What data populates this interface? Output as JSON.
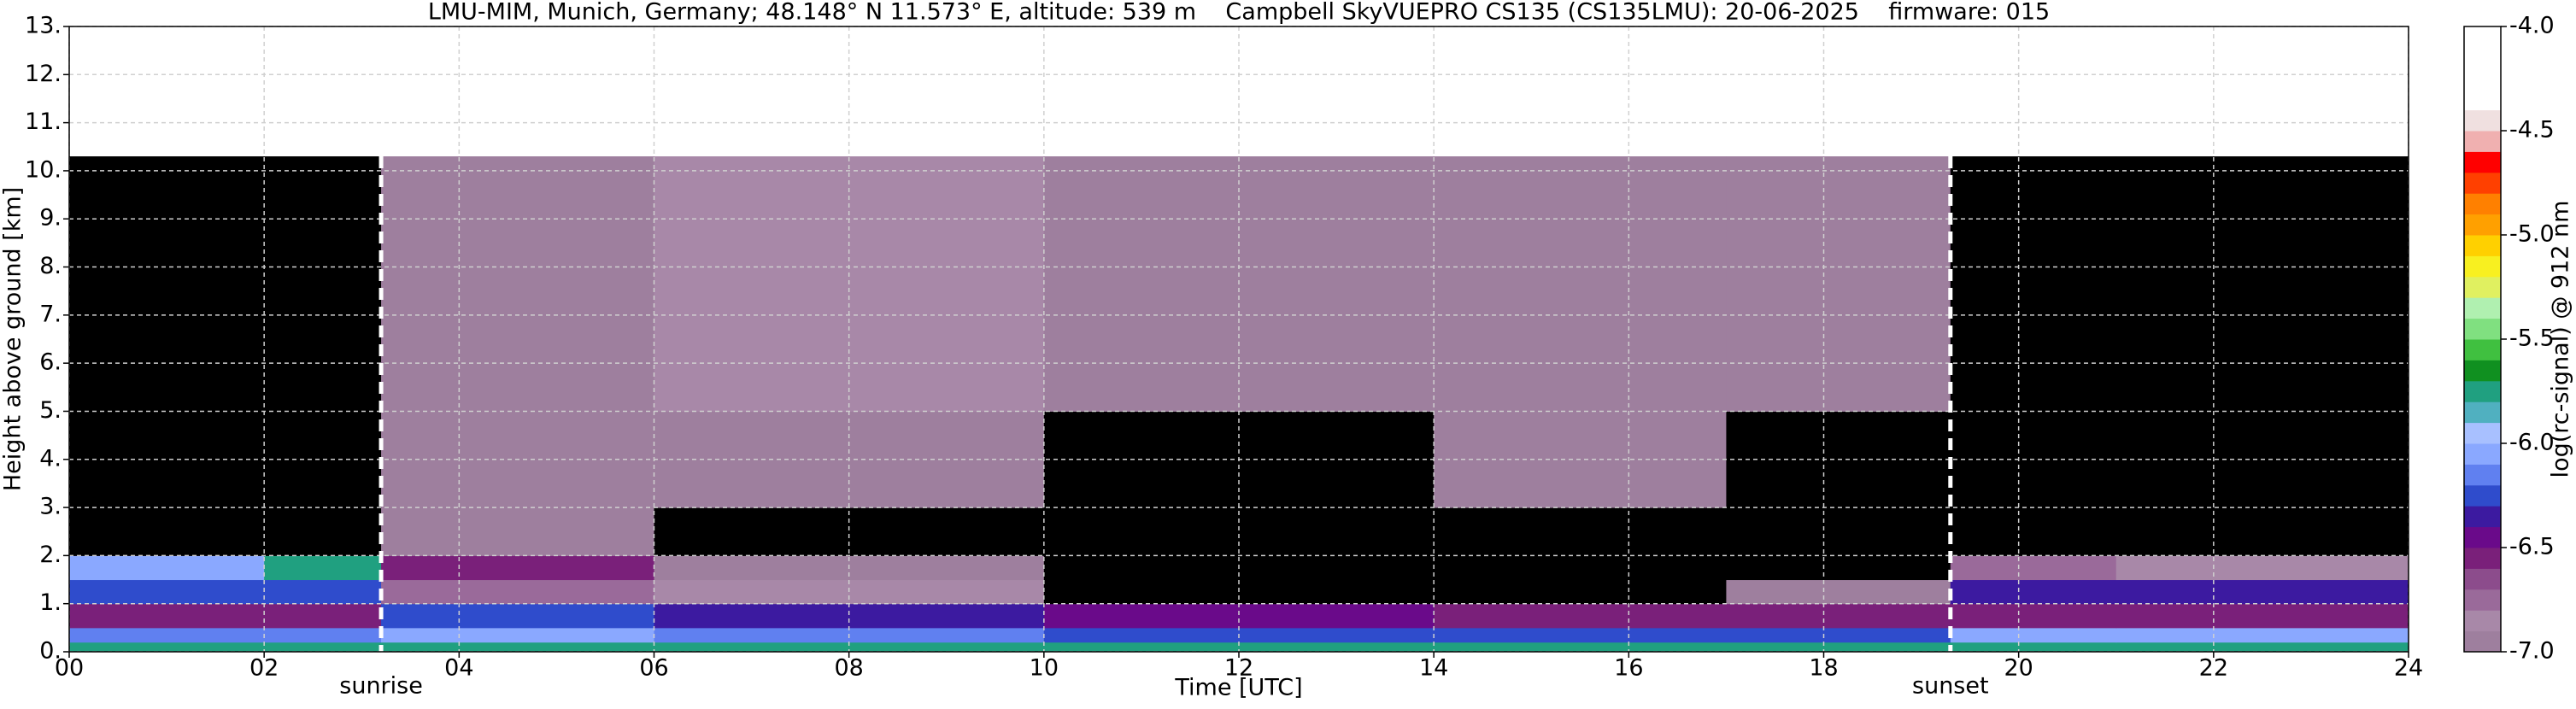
{
  "chart_data": {
    "type": "heatmap",
    "title": "LMU-MIM, Munich, Germany; 48.148° N 11.573° E, altitude: 539 m    Campbell SkyVUEPRO CS135 (CS135LMU): 20-06-2025    firmware: 015",
    "xlabel": "Time [UTC]",
    "ylabel": "Height above ground [km]",
    "colorbar_label": "log(rc-signal) @ 912 nm",
    "xlim": [
      0,
      24
    ],
    "ylim": [
      0,
      13
    ],
    "xticks": [
      {
        "value": 0,
        "label": "00"
      },
      {
        "value": 2,
        "label": "02"
      },
      {
        "value": 4,
        "label": "04"
      },
      {
        "value": 6,
        "label": "06"
      },
      {
        "value": 8,
        "label": "08"
      },
      10,
      12,
      14,
      16,
      18,
      20,
      22,
      24
    ],
    "yticks": [
      {
        "value": 0,
        "label": "0."
      },
      {
        "value": 1,
        "label": "1."
      },
      {
        "value": 2,
        "label": "2."
      },
      {
        "value": 3,
        "label": "3."
      },
      {
        "value": 4,
        "label": "4."
      },
      {
        "value": 5,
        "label": "5."
      },
      {
        "value": 6,
        "label": "6."
      },
      {
        "value": 7,
        "label": "7."
      },
      {
        "value": 8,
        "label": "8."
      },
      {
        "value": 9,
        "label": "9."
      },
      {
        "value": 10,
        "label": "10."
      },
      {
        "value": 11,
        "label": "11."
      },
      {
        "value": 12,
        "label": "12."
      },
      {
        "value": 13,
        "label": "13."
      }
    ],
    "grid": true,
    "x_edges": [
      0,
      2,
      3.2,
      6,
      10,
      14,
      17,
      19.3,
      21,
      24
    ],
    "y_edges": [
      0,
      0.2,
      0.5,
      1.0,
      1.5,
      2.0,
      3.0,
      5.0,
      10.3
    ],
    "z": [
      [
        -5.8,
        -5.8,
        -5.8,
        -5.8,
        -5.8,
        -5.8,
        -5.8,
        -5.8,
        -5.8
      ],
      [
        -6.2,
        -6.2,
        -6.1,
        -6.2,
        -6.3,
        -6.3,
        -6.3,
        -6.1,
        -6.1
      ],
      [
        -6.6,
        -6.6,
        -6.3,
        -6.4,
        -6.5,
        -6.6,
        -6.6,
        -6.6,
        -6.6
      ],
      [
        -6.3,
        -6.3,
        -6.8,
        -6.9,
        -7.2,
        -7.2,
        -7.0,
        -6.4,
        -6.4
      ],
      [
        -6.1,
        -5.8,
        -6.6,
        -7.0,
        -7.2,
        -7.2,
        -7.2,
        -6.8,
        -6.9
      ],
      [
        -7.2,
        -7.2,
        -6.95,
        -7.2,
        -7.2,
        -7.2,
        -7.2,
        -7.2,
        -7.1
      ],
      [
        -7.2,
        -7.2,
        -6.95,
        -6.95,
        -7.2,
        -6.95,
        -7.2,
        -7.2,
        -7.2
      ],
      [
        -7.2,
        -7.2,
        -6.95,
        -6.9,
        -6.95,
        -6.95,
        -6.95,
        -7.2,
        -7.2
      ]
    ],
    "under_color": "#000000",
    "colorbar_edges": [
      -7.0,
      -6.9,
      -6.8,
      -6.7,
      -6.6,
      -6.5,
      -6.4,
      -6.3,
      -6.2,
      -6.1,
      -6.0,
      -5.9,
      -5.8,
      -5.7,
      -5.6,
      -5.5,
      -5.4,
      -5.3,
      -5.2,
      -5.1,
      -5.0,
      -4.9,
      -4.8,
      -4.7,
      -4.6,
      -4.5,
      -4.4,
      -4.3,
      -4.2,
      -4.1,
      -4.0
    ],
    "colorbar_colors": [
      "#9e7f9e",
      "#a888a8",
      "#9a6a9a",
      "#8c4c8c",
      "#7a207a",
      "#6a0a8a",
      "#3c1aa0",
      "#2f4ccc",
      "#6080f0",
      "#8aa8ff",
      "#a8c0ff",
      "#50b0c0",
      "#20a080",
      "#109020",
      "#40c040",
      "#80e080",
      "#b0f0b0",
      "#e0f060",
      "#f8f020",
      "#ffd000",
      "#ffa000",
      "#ff8000",
      "#ff4000",
      "#ff0000",
      "#f0b0b0",
      "#f0e0e0",
      "#ffffff",
      "#ffffff",
      "#ffffff",
      "#ffffff"
    ],
    "colorbar_ticks": [
      {
        "value": -7.0,
        "label": "-7.0"
      },
      {
        "value": -6.5,
        "label": "-6.5"
      },
      {
        "value": -6.0,
        "label": "-6.0"
      },
      {
        "value": -5.5,
        "label": "-5.5"
      },
      {
        "value": -5.0,
        "label": "-5.0"
      },
      {
        "value": -4.5,
        "label": "-4.5"
      },
      {
        "value": -4.0,
        "label": "-4.0"
      }
    ],
    "annotations": [
      {
        "text": "sunrise",
        "x": 3.2
      },
      {
        "text": "sunset",
        "x": 19.3
      }
    ]
  }
}
